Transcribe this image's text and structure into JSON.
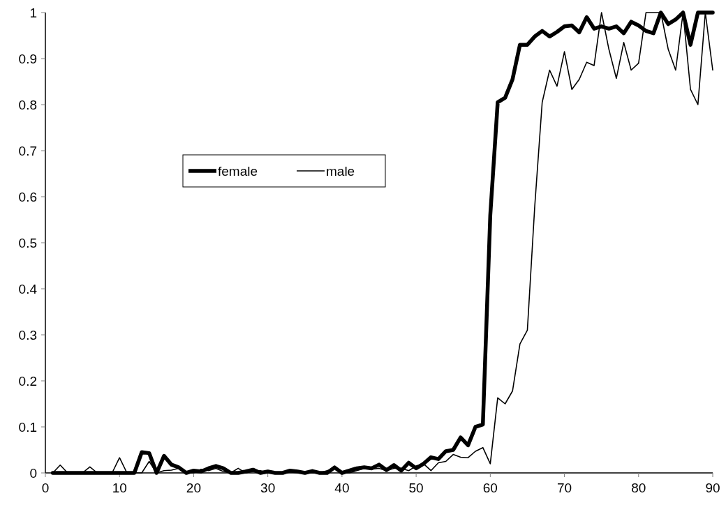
{
  "chart_data": {
    "type": "line",
    "x": [
      1,
      2,
      3,
      4,
      5,
      6,
      7,
      8,
      9,
      10,
      11,
      12,
      13,
      14,
      15,
      16,
      17,
      18,
      19,
      20,
      21,
      22,
      23,
      24,
      25,
      26,
      27,
      28,
      29,
      30,
      31,
      32,
      33,
      34,
      35,
      36,
      37,
      38,
      39,
      40,
      41,
      42,
      43,
      44,
      45,
      46,
      47,
      48,
      49,
      50,
      51,
      52,
      53,
      54,
      55,
      56,
      57,
      58,
      59,
      60,
      61,
      62,
      63,
      64,
      65,
      66,
      67,
      68,
      69,
      70,
      71,
      72,
      73,
      74,
      75,
      76,
      77,
      78,
      79,
      80,
      81,
      82,
      83,
      84,
      85,
      86,
      87,
      88,
      89,
      90
    ],
    "series": [
      {
        "name": "female",
        "color": "#000000",
        "values": [
          0,
          0,
          0,
          0,
          0,
          0,
          0,
          0,
          0,
          0,
          0,
          0,
          0.045,
          0.043,
          0,
          0.037,
          0.018,
          0.012,
          0,
          0.005,
          0.003,
          0.01,
          0.015,
          0.01,
          0,
          0,
          0.003,
          0.007,
          0,
          0.003,
          0,
          0,
          0.005,
          0.003,
          0,
          0.004,
          0,
          0,
          0.012,
          0,
          0.005,
          0.01,
          0.012,
          0.01,
          0.018,
          0.006,
          0.017,
          0.005,
          0.022,
          0.01,
          0.02,
          0.034,
          0.03,
          0.047,
          0.05,
          0.077,
          0.06,
          0.1,
          0.105,
          0.56,
          0.805,
          0.815,
          0.855,
          0.93,
          0.93,
          0.948,
          0.96,
          0.948,
          0.958,
          0.97,
          0.972,
          0.957,
          0.99,
          0.965,
          0.97,
          0.965,
          0.97,
          0.955,
          0.98,
          0.972,
          0.96,
          0.955,
          1,
          0.975,
          0.985,
          1,
          0.93,
          1,
          1,
          1
        ]
      },
      {
        "name": "male",
        "color": "#000000",
        "values": [
          0,
          0.017,
          0,
          0,
          0,
          0.013,
          0,
          0,
          0,
          0.033,
          0,
          0,
          0,
          0.025,
          0,
          0.005,
          0.006,
          0.01,
          0,
          0,
          0.008,
          0.005,
          0.01,
          0.003,
          0,
          0.01,
          0,
          0.003,
          0.005,
          0,
          0.002,
          0.002,
          0.002,
          0.002,
          0.002,
          0,
          0,
          0.005,
          0.01,
          0,
          0,
          0.005,
          0.01,
          0.008,
          0.01,
          0.005,
          0.01,
          0.01,
          0.005,
          0.015,
          0.02,
          0.005,
          0.022,
          0.025,
          0.04,
          0.034,
          0.033,
          0.047,
          0.055,
          0.02,
          0.163,
          0.15,
          0.178,
          0.28,
          0.31,
          0.58,
          0.805,
          0.875,
          0.84,
          0.915,
          0.833,
          0.855,
          0.892,
          0.885,
          1,
          0.92,
          0.857,
          0.935,
          0.875,
          0.89,
          1,
          1,
          1,
          0.92,
          0.875,
          1,
          0.833,
          0.8,
          1,
          0.875
        ]
      }
    ],
    "xlim": [
      0,
      90
    ],
    "xticks": [
      0,
      10,
      20,
      30,
      40,
      50,
      60,
      70,
      80,
      90
    ],
    "ylim": [
      0,
      1
    ],
    "yticks": [
      0,
      0.1,
      0.2,
      0.3,
      0.4,
      0.5,
      0.6,
      0.7,
      0.8,
      0.9,
      1
    ],
    "grid": false,
    "legend": "left",
    "marker": "none",
    "line_style": "solid"
  }
}
